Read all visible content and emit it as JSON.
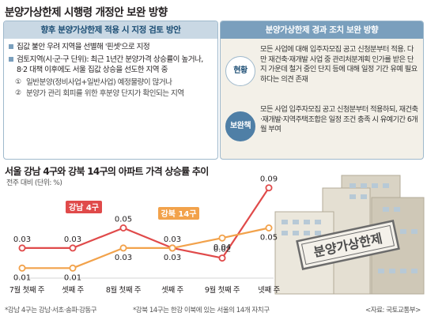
{
  "page": {
    "title": "분양가상한제 시행령 개정안 보완 방향"
  },
  "left_panel": {
    "header": "향후 분양가상한제 적용 시 지정 검토 방안",
    "items": [
      {
        "text": "집값 불안 우려 지역을 선별해 '핀셋'으로 지정"
      },
      {
        "text": "검토지역(시·군·구 단위): 최근 1년간 분양가격 상승률이 높거나, 8·2 대책 이후에도 서울 집값 상승을 선도한 지역 중"
      }
    ],
    "sub_items": [
      {
        "num": "①",
        "text": "일반분양(정비사업+일반사업) 예정물량이 많거나"
      },
      {
        "num": "②",
        "text": "분양가 관리 회피를 위한 후분양 단지가 확인되는 지역"
      }
    ]
  },
  "right_panel": {
    "header": "분양가상한제 경과 조치 보완 방향",
    "blocks": [
      {
        "label": "현황",
        "text": "모든 사업에 대해 입주자모집 공고 신청분부터 적용. 다만 재건축·재개발 사업 중 관리처분계획 인가를 받은 단지 가운데 철거 중인 단지 등에 대해 일정 기간 유예 필요하다는 의견 존재"
      },
      {
        "label": "보완책",
        "text": "모든 사업 입주자모집 공고 신청분부터 적용하되, 재건축·재개발·지역주택조합은 일정 조건 충족 시 유예기간 6개월 부여"
      }
    ]
  },
  "chart_data": {
    "type": "line",
    "title": "서울 강남 4구와 강북 14구의 아파트 가격 상승률 추이",
    "unit_label": "전주 대비 (단위: %)",
    "categories": [
      "7월 첫째 주",
      "셋째 주",
      "8월 첫째 주",
      "셋째 주",
      "9월 첫째 주",
      "넷째 주"
    ],
    "series": [
      {
        "name": "강남 4구",
        "color": "#e04a4a",
        "values": [
          0.03,
          0.03,
          0.05,
          0.03,
          0.02,
          0.09
        ]
      },
      {
        "name": "강북 14구",
        "color": "#f2a24b",
        "values": [
          0.01,
          0.01,
          0.03,
          0.03,
          0.04,
          0.05
        ]
      }
    ],
    "ylim": [
      0,
      0.1
    ],
    "grid": false,
    "legend": "inline"
  },
  "illustration": {
    "stamp_text": "분양가상한제"
  },
  "footnotes": {
    "note1": "*강남 4구는 강남·서초·송파·강동구",
    "note2": "*강북 14구는 한강 이북에 있는 서울의 14개 자치구",
    "source": "<자료: 국토교통부>"
  },
  "colors": {
    "accent": "#7a9fbd",
    "gangnam": "#e04a4a",
    "gangbuk": "#f2a24b"
  }
}
